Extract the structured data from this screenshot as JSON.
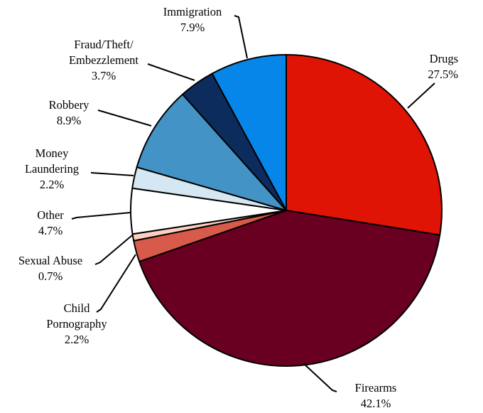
{
  "chart_data": {
    "type": "pie",
    "title": "",
    "slices": [
      {
        "name": "Drugs",
        "pct_label": "27.5%",
        "value": 27.5,
        "color": "#e01404"
      },
      {
        "name": "Firearms",
        "pct_label": "42.1%",
        "value": 42.1,
        "color": "#6a0021"
      },
      {
        "name": "Child Pornography",
        "pct_label": "2.2%",
        "value": 2.2,
        "color": "#d85a4a"
      },
      {
        "name": "Sexual Abuse",
        "pct_label": "0.7%",
        "value": 0.7,
        "color": "#fbd0c0"
      },
      {
        "name": "Other",
        "pct_label": "4.7%",
        "value": 4.7,
        "color": "#ffffff"
      },
      {
        "name": "Money Laundering",
        "pct_label": "2.2%",
        "value": 2.2,
        "color": "#d5e7f2"
      },
      {
        "name": "Robbery",
        "pct_label": "8.9%",
        "value": 8.9,
        "color": "#4493c6"
      },
      {
        "name": "Fraud/Theft/Embezzlement",
        "pct_label": "3.7%",
        "value": 3.7,
        "color": "#0c2c5e"
      },
      {
        "name": "Immigration",
        "pct_label": "7.9%",
        "value": 7.9,
        "color": "#0786ea"
      }
    ],
    "start": "12 o'clock",
    "direction": "clockwise",
    "legend": "none (leader-line labels)"
  }
}
